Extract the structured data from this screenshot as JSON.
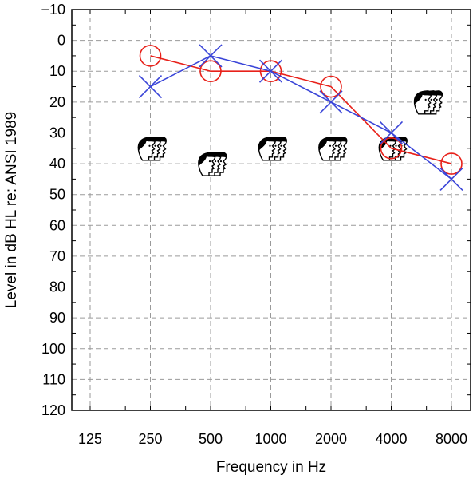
{
  "chart_data": {
    "type": "line",
    "title": "",
    "xlabel": "Frequency in Hz",
    "ylabel": "Level in dB HL re: ANSI 1989",
    "x_scale": "log2",
    "x_ticks": [
      125,
      250,
      500,
      1000,
      2000,
      4000,
      8000
    ],
    "x_tick_labels": [
      "125",
      "250",
      "500",
      "1000",
      "2000",
      "4000",
      "8000"
    ],
    "ylim": [
      -10,
      120
    ],
    "y_inverted": true,
    "y_ticks": [
      -10,
      0,
      10,
      20,
      30,
      40,
      50,
      60,
      70,
      80,
      90,
      100,
      110,
      120
    ],
    "y_tick_labels": [
      "−10",
      "0",
      "10",
      "20",
      "30",
      "40",
      "50",
      "60",
      "70",
      "80",
      "90",
      "100",
      "110",
      "120"
    ],
    "grid": true,
    "series": [
      {
        "marker": "circle",
        "color": "#e8211a",
        "x": [
          250,
          500,
          1000,
          2000,
          4000,
          8000
        ],
        "y": [
          5,
          10,
          10,
          15,
          35,
          40
        ]
      },
      {
        "marker": "x",
        "color": "#3a45d8",
        "x": [
          250,
          500,
          1000,
          2000,
          4000,
          8000
        ],
        "y": [
          15,
          5,
          10,
          20,
          30,
          45
        ]
      }
    ],
    "symbols": {
      "icon": "face-profiles-icon",
      "points": [
        {
          "x": 250,
          "y": 35
        },
        {
          "x": 500,
          "y": 40
        },
        {
          "x": 1000,
          "y": 35
        },
        {
          "x": 2000,
          "y": 35
        },
        {
          "x": 4000,
          "y": 35
        },
        {
          "x": 6000,
          "y": 20
        }
      ]
    }
  }
}
